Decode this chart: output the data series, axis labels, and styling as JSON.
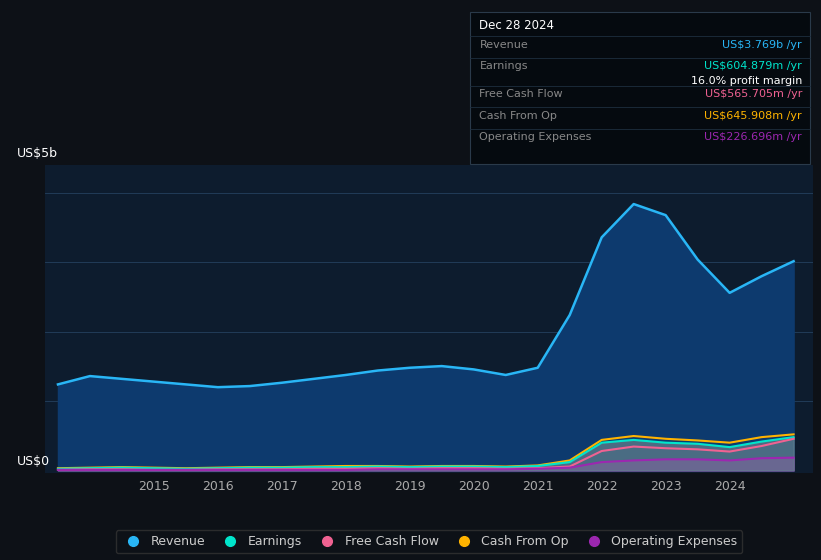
{
  "bg_color": "#0d1117",
  "chart_bg_color": "#0d1c2e",
  "grid_color": "#2a4a6a",
  "title_y_label": "US$5b",
  "label_y0": "US$0",
  "x_years": [
    2013.5,
    2014.0,
    2014.5,
    2015.0,
    2015.5,
    2016.0,
    2016.5,
    2017.0,
    2017.5,
    2018.0,
    2018.5,
    2019.0,
    2019.5,
    2020.0,
    2020.5,
    2021.0,
    2021.5,
    2022.0,
    2022.5,
    2023.0,
    2023.5,
    2024.0,
    2024.5,
    2025.0
  ],
  "revenue": [
    1.55,
    1.7,
    1.65,
    1.6,
    1.55,
    1.5,
    1.52,
    1.58,
    1.65,
    1.72,
    1.8,
    1.85,
    1.88,
    1.82,
    1.72,
    1.85,
    2.8,
    4.2,
    4.8,
    4.6,
    3.8,
    3.2,
    3.5,
    3.77
  ],
  "earnings": [
    0.03,
    0.04,
    0.05,
    0.04,
    0.03,
    0.04,
    0.05,
    0.05,
    0.06,
    0.06,
    0.07,
    0.06,
    0.07,
    0.07,
    0.06,
    0.08,
    0.15,
    0.5,
    0.55,
    0.5,
    0.48,
    0.42,
    0.52,
    0.6
  ],
  "free_cash_flow": [
    0.01,
    0.02,
    0.02,
    0.01,
    0.01,
    0.02,
    0.02,
    0.02,
    0.03,
    0.03,
    0.04,
    0.03,
    0.04,
    0.04,
    0.03,
    0.04,
    0.07,
    0.35,
    0.43,
    0.4,
    0.38,
    0.34,
    0.44,
    0.57
  ],
  "cash_from_op": [
    0.04,
    0.05,
    0.06,
    0.05,
    0.04,
    0.05,
    0.06,
    0.06,
    0.07,
    0.08,
    0.08,
    0.07,
    0.08,
    0.08,
    0.07,
    0.09,
    0.18,
    0.55,
    0.62,
    0.57,
    0.54,
    0.5,
    0.6,
    0.65
  ],
  "operating_expenses": [
    0.01,
    0.01,
    0.01,
    0.01,
    0.01,
    0.01,
    0.01,
    0.01,
    0.01,
    0.01,
    0.02,
    0.02,
    0.02,
    0.02,
    0.02,
    0.03,
    0.05,
    0.15,
    0.18,
    0.2,
    0.2,
    0.18,
    0.22,
    0.23
  ],
  "revenue_line_color": "#29b6f6",
  "revenue_fill_color": "#0d3a6e",
  "earnings_color": "#00e5cc",
  "free_cash_flow_color": "#f06292",
  "cash_from_op_color": "#ffb300",
  "operating_expenses_color": "#9c27b0",
  "earnings_fill_color": "#607d8b",
  "tooltip_bg": "#050a0f",
  "tooltip_border": "#2a3a4a",
  "tooltip_title": "Dec 28 2024",
  "tooltip_revenue_label": "Revenue",
  "tooltip_revenue_val": "US$3.769b /yr",
  "tooltip_earnings_label": "Earnings",
  "tooltip_earnings_val": "US$604.879m /yr",
  "tooltip_margin": "16.0% profit margin",
  "tooltip_fcf_label": "Free Cash Flow",
  "tooltip_fcf_val": "US$565.705m /yr",
  "tooltip_cashop_label": "Cash From Op",
  "tooltip_cashop_val": "US$645.908m /yr",
  "tooltip_opex_label": "Operating Expenses",
  "tooltip_opex_val": "US$226.696m /yr",
  "xlim": [
    2013.3,
    2025.3
  ],
  "ylim": [
    -0.05,
    5.5
  ],
  "xticks": [
    2015,
    2016,
    2017,
    2018,
    2019,
    2020,
    2021,
    2022,
    2023,
    2024
  ],
  "legend_labels": [
    "Revenue",
    "Earnings",
    "Free Cash Flow",
    "Cash From Op",
    "Operating Expenses"
  ],
  "legend_colors": [
    "#29b6f6",
    "#00e5cc",
    "#f06292",
    "#ffb300",
    "#9c27b0"
  ]
}
